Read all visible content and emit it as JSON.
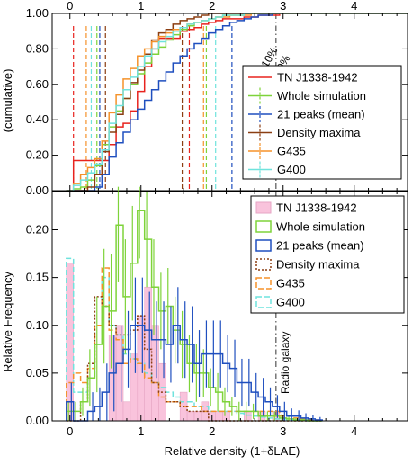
{
  "chart_data": [
    {
      "type": "line",
      "ylabel": "(cumulative)",
      "xlim": [
        -0.25,
        4.75
      ],
      "ylim": [
        0,
        1
      ],
      "x_ticks": [
        "0",
        "1",
        "2",
        "3",
        "4"
      ],
      "y_ticks": [
        "0.00",
        "0.20",
        "0.40",
        "0.60",
        "0.80",
        "1.00"
      ],
      "legend_position": "right",
      "annotations": [
        "10%",
        "90%"
      ],
      "series": [
        {
          "name": "TN J1338-1942",
          "color": "#e8231e",
          "x": [
            -0.05,
            0.05,
            0.15,
            0.25,
            0.35,
            0.45,
            0.55,
            0.65,
            0.75,
            0.85,
            0.95,
            1.05,
            1.15,
            1.25,
            1.35,
            1.45,
            1.55,
            1.65,
            1.75,
            1.85,
            1.95,
            2.05,
            2.15,
            2.25,
            2.35,
            2.45,
            2.55,
            2.65,
            2.75,
            2.85,
            2.95,
            3.05,
            4.75
          ],
          "y": [
            0.0,
            0.17,
            0.17,
            0.17,
            0.17,
            0.17,
            0.26,
            0.36,
            0.38,
            0.45,
            0.56,
            0.7,
            0.8,
            0.86,
            0.86,
            0.86,
            0.9,
            0.91,
            0.92,
            0.94,
            0.95,
            0.96,
            0.97,
            0.97,
            0.97,
            0.98,
            0.98,
            0.99,
            0.99,
            0.99,
            1.0,
            1.0,
            1.0
          ],
          "p10": 0.05,
          "p90": 1.68
        },
        {
          "name": "Whole simulation",
          "color": "#7ed33a",
          "x": [
            -0.05,
            0.05,
            0.15,
            0.25,
            0.35,
            0.45,
            0.55,
            0.65,
            0.75,
            0.85,
            0.95,
            1.05,
            1.15,
            1.25,
            1.35,
            1.45,
            1.55,
            1.65,
            1.75,
            1.85,
            1.95,
            2.05,
            2.15,
            2.25,
            2.35,
            2.45,
            2.55,
            2.65,
            2.75,
            2.85,
            2.95,
            3.05,
            4.75
          ],
          "y": [
            0.0,
            0.01,
            0.02,
            0.06,
            0.14,
            0.26,
            0.36,
            0.45,
            0.52,
            0.6,
            0.66,
            0.72,
            0.77,
            0.81,
            0.85,
            0.88,
            0.91,
            0.93,
            0.95,
            0.96,
            0.97,
            0.98,
            0.99,
            0.99,
            0.99,
            1.0,
            1.0,
            1.0,
            1.0,
            1.0,
            1.0,
            1.0,
            1.0
          ],
          "p10": 0.38,
          "p90": 1.92
        },
        {
          "name": "21 peaks (mean)",
          "color": "#1f4fbf",
          "x": [
            -0.05,
            0.05,
            0.15,
            0.25,
            0.35,
            0.45,
            0.55,
            0.65,
            0.75,
            0.85,
            0.95,
            1.05,
            1.15,
            1.25,
            1.35,
            1.45,
            1.55,
            1.65,
            1.75,
            1.85,
            1.95,
            2.05,
            2.15,
            2.25,
            2.35,
            2.45,
            2.55,
            2.65,
            2.75,
            2.85,
            2.95,
            3.05,
            4.75
          ],
          "y": [
            0.0,
            0.0,
            0.0,
            0.0,
            0.02,
            0.09,
            0.19,
            0.27,
            0.33,
            0.4,
            0.46,
            0.51,
            0.57,
            0.62,
            0.67,
            0.72,
            0.76,
            0.8,
            0.83,
            0.86,
            0.89,
            0.91,
            0.93,
            0.95,
            0.96,
            0.97,
            0.98,
            0.99,
            0.99,
            1.0,
            1.0,
            1.0,
            1.0
          ],
          "p10": 0.42,
          "p90": 2.28
        },
        {
          "name": "Density maxima",
          "color": "#8b3e12",
          "x": [
            -0.05,
            0.05,
            0.15,
            0.25,
            0.35,
            0.45,
            0.55,
            0.65,
            0.75,
            0.85,
            0.95,
            1.05,
            1.15,
            1.25,
            1.35,
            1.45,
            1.55,
            1.65,
            1.75,
            1.85,
            1.95,
            2.05,
            2.15,
            2.25,
            2.35,
            2.45,
            2.55,
            2.65,
            2.75,
            2.85,
            2.95,
            3.05,
            4.75
          ],
          "y": [
            0.0,
            0.0,
            0.0,
            0.02,
            0.09,
            0.22,
            0.33,
            0.43,
            0.52,
            0.61,
            0.68,
            0.77,
            0.85,
            0.89,
            0.91,
            0.94,
            0.96,
            0.97,
            0.98,
            0.99,
            1.0,
            1.0,
            1.0,
            1.0,
            1.0,
            1.0,
            1.0,
            1.0,
            1.0,
            1.0,
            1.0,
            1.0,
            1.0
          ],
          "p10": 0.5,
          "p90": 1.58
        },
        {
          "name": "G435",
          "color": "#f5922a",
          "x": [
            -0.05,
            0.05,
            0.15,
            0.25,
            0.35,
            0.45,
            0.55,
            0.65,
            0.75,
            0.85,
            0.95,
            1.05,
            1.15,
            1.25,
            1.35,
            1.45,
            1.55,
            1.65,
            1.75,
            1.85,
            1.95,
            2.05,
            2.15,
            2.25,
            2.35,
            2.45,
            2.55,
            2.65,
            2.75,
            2.85,
            2.95,
            3.05,
            4.75
          ],
          "y": [
            0.0,
            0.04,
            0.09,
            0.13,
            0.18,
            0.28,
            0.44,
            0.54,
            0.63,
            0.69,
            0.76,
            0.8,
            0.84,
            0.87,
            0.89,
            0.91,
            0.92,
            0.94,
            0.95,
            0.96,
            0.97,
            0.98,
            0.98,
            0.99,
            0.99,
            0.99,
            1.0,
            1.0,
            1.0,
            1.0,
            1.0,
            1.0,
            1.0
          ],
          "p10": 0.23,
          "p90": 1.88
        },
        {
          "name": "G400",
          "color": "#6fe3dd",
          "x": [
            -0.05,
            0.05,
            0.15,
            0.25,
            0.35,
            0.45,
            0.55,
            0.65,
            0.75,
            0.85,
            0.95,
            1.05,
            1.15,
            1.25,
            1.35,
            1.45,
            1.55,
            1.65,
            1.75,
            1.85,
            1.95,
            2.05,
            2.15,
            2.25,
            2.35,
            2.45,
            2.55,
            2.65,
            2.75,
            2.85,
            2.95,
            3.05,
            4.75
          ],
          "y": [
            0.0,
            0.03,
            0.06,
            0.1,
            0.15,
            0.23,
            0.38,
            0.48,
            0.57,
            0.64,
            0.7,
            0.76,
            0.8,
            0.84,
            0.87,
            0.9,
            0.92,
            0.94,
            0.95,
            0.96,
            0.97,
            0.98,
            0.99,
            0.99,
            0.99,
            1.0,
            1.0,
            1.0,
            1.0,
            1.0,
            1.0,
            1.0,
            1.0
          ],
          "p10": 0.3,
          "p90": 2.05
        }
      ]
    },
    {
      "type": "bar",
      "xlabel": "Relative density (1+δLAE)",
      "ylabel": "Relative Frequency",
      "xlim": [
        -0.25,
        4.75
      ],
      "ylim": [
        0,
        0.24
      ],
      "x_ticks": [
        "0",
        "1",
        "2",
        "3",
        "4"
      ],
      "y_ticks": [
        "0.00",
        "0.05",
        "0.10",
        "0.15",
        "0.20"
      ],
      "legend_position": "top-right",
      "annotations": [
        "Radio galaxy"
      ],
      "radio_galaxy_x": 2.9,
      "bin_width": 0.1,
      "bin_centers": [
        0.0,
        0.1,
        0.2,
        0.3,
        0.4,
        0.5,
        0.6,
        0.7,
        0.8,
        0.9,
        1.0,
        1.1,
        1.2,
        1.3,
        1.4,
        1.5,
        1.6,
        1.7,
        1.8,
        1.9,
        2.0,
        2.1,
        2.2,
        2.3,
        2.4,
        2.5,
        2.6,
        2.7,
        2.8,
        2.9,
        3.0,
        3.1,
        3.2,
        3.3,
        3.4,
        3.5
      ],
      "series": [
        {
          "name": "TN J1338-1942",
          "color": "#f9c3dc",
          "style": "filled",
          "values": [
            0.165,
            0,
            0,
            0,
            0,
            0,
            0.09,
            0.1,
            0.02,
            0.07,
            0.11,
            0.14,
            0.1,
            0.06,
            0,
            0,
            0.03,
            0.01,
            0.01,
            0.02,
            0.01,
            0.01,
            0.01,
            0,
            0,
            0.01,
            0,
            0.01,
            0,
            0.01,
            0,
            0,
            0,
            0,
            0,
            0
          ]
        },
        {
          "name": "Whole simulation",
          "color": "#7ed33a",
          "style": "solid",
          "values": [
            0.01,
            0.01,
            0.02,
            0.04,
            0.08,
            0.12,
            0.1,
            0.09,
            0.07,
            0.08,
            0.06,
            0.06,
            0.05,
            0.04,
            0.04,
            0.03,
            0.03,
            0.02,
            0.02,
            0.01,
            0.01,
            0.01,
            0.01,
            0.005,
            0.005,
            0.003,
            0.002,
            0.002,
            0.001,
            0.001,
            0,
            0,
            0,
            0,
            0,
            0
          ],
          "values_plotted": [
            0.01,
            0.01,
            0.02,
            0.045,
            0.08,
            0.12,
            0.115,
            0.205,
            0.13,
            0.165,
            0.22,
            0.19,
            0.14,
            0.115,
            0.12,
            0.095,
            0.08,
            0.06,
            0.05,
            0.05,
            0.035,
            0.03,
            0.02,
            0.015,
            0.01,
            0.01,
            0.01,
            0.005,
            0.005,
            0.005,
            0.003,
            0.002,
            0.001,
            0.001,
            0,
            0
          ],
          "error": [
            0.01,
            0.01,
            0.015,
            0.03,
            0.05,
            0.06,
            0.06,
            0.06,
            0.06,
            0.06,
            0.05,
            0.05,
            0.05,
            0.04,
            0.04,
            0.035,
            0.035,
            0.03,
            0.03,
            0.025,
            0.02,
            0.02,
            0.015,
            0.01,
            0.01,
            0.01,
            0.008,
            0.005,
            0.005,
            0.005,
            0.004,
            0.003,
            0.002,
            0.002,
            0,
            0
          ]
        },
        {
          "name": "21 peaks (mean)",
          "color": "#1f4fbf",
          "style": "solid",
          "values": [
            0.02,
            0.0,
            0.0,
            0.01,
            0.015,
            0.03,
            0.05,
            0.06,
            0.075,
            0.1,
            0.1,
            0.095,
            0.085,
            0.085,
            0.08,
            0.1,
            0.085,
            0.08,
            0.06,
            0.07,
            0.07,
            0.07,
            0.06,
            0.055,
            0.04,
            0.04,
            0.03,
            0.025,
            0.02,
            0.015,
            0.01,
            0.005,
            0.005,
            0.003,
            0.002,
            0.001
          ],
          "error": [
            0.02,
            0.01,
            0.01,
            0.02,
            0.02,
            0.03,
            0.04,
            0.04,
            0.04,
            0.05,
            0.05,
            0.04,
            0.04,
            0.04,
            0.04,
            0.04,
            0.04,
            0.04,
            0.035,
            0.035,
            0.035,
            0.035,
            0.03,
            0.03,
            0.025,
            0.025,
            0.02,
            0.02,
            0.015,
            0.012,
            0.01,
            0.008,
            0.006,
            0.005,
            0.004,
            0.003
          ]
        },
        {
          "name": "Density maxima",
          "color": "#8b3e12",
          "style": "dotted",
          "values": [
            0.0,
            0.0,
            0.02,
            0.06,
            0.13,
            0.12,
            0.1,
            0.09,
            0.09,
            0.095,
            0.11,
            0.075,
            0.04,
            0.03,
            0.02,
            0.02,
            0.015,
            0.01,
            0.01,
            0.01,
            0.0,
            0,
            0,
            0,
            0,
            0,
            0,
            0,
            0,
            0,
            0,
            0,
            0,
            0,
            0,
            0
          ]
        },
        {
          "name": "G435",
          "color": "#f5922a",
          "style": "dashed",
          "values": [
            0.04,
            0.05,
            0.04,
            0.055,
            0.1,
            0.16,
            0.095,
            0.085,
            0.06,
            0.065,
            0.06,
            0.045,
            0.04,
            0.025,
            0.02,
            0.02,
            0.015,
            0.015,
            0.015,
            0.01,
            0.01,
            0.01,
            0.01,
            0.01,
            0.01,
            0.01,
            0.01,
            0.01,
            0.01,
            0.01,
            0.005,
            0.005,
            0.003,
            0.002,
            0.001,
            0.001
          ]
        },
        {
          "name": "G400",
          "color": "#6fe3dd",
          "style": "dashed",
          "values": [
            0.17,
            0.03,
            0.03,
            0.045,
            0.08,
            0.15,
            0.1,
            0.09,
            0.07,
            0.065,
            0.06,
            0.05,
            0.04,
            0.035,
            0.03,
            0.025,
            0.02,
            0.02,
            0.015,
            0.015,
            0.01,
            0.01,
            0.01,
            0.01,
            0.008,
            0.006,
            0.005,
            0.004,
            0.003,
            0.002,
            0.002,
            0.001,
            0.001,
            0,
            0,
            0
          ]
        }
      ]
    }
  ]
}
